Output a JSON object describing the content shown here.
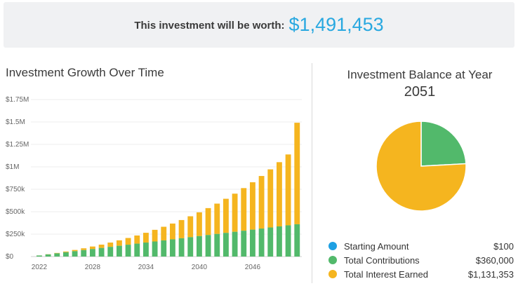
{
  "banner": {
    "label": "This investment will be worth:",
    "value": "$1,491,453"
  },
  "growth_chart_title": "Investment Growth Over Time",
  "balance": {
    "title": "Investment Balance at Year",
    "year": "2051"
  },
  "legend": [
    {
      "label": "Starting Amount",
      "value": "$100",
      "color": "#1ea0e3"
    },
    {
      "label": "Total Contributions",
      "value": "$360,000",
      "color": "#52b96b"
    },
    {
      "label": "Total Interest Earned",
      "value": "$1,131,353",
      "color": "#f5b51f"
    }
  ],
  "colors": {
    "contributions": "#52b96b",
    "interest": "#f5b51f",
    "starting": "#1ea0e3",
    "accent": "#29a8e0"
  },
  "chart_data": [
    {
      "type": "bar",
      "stacked": true,
      "title": "Investment Growth Over Time",
      "x": [
        2022,
        2023,
        2024,
        2025,
        2026,
        2027,
        2028,
        2029,
        2030,
        2031,
        2032,
        2033,
        2034,
        2035,
        2036,
        2037,
        2038,
        2039,
        2040,
        2041,
        2042,
        2043,
        2044,
        2045,
        2046,
        2047,
        2048,
        2049,
        2050,
        2051
      ],
      "x_tick_labels": [
        "2022",
        "2028",
        "2034",
        "2040",
        "2046"
      ],
      "y_tick_labels": [
        "$0",
        "$250k",
        "$500k",
        "$750k",
        "$1M",
        "$1.25M",
        "$1.5M",
        "$1.75M"
      ],
      "ylim": [
        0,
        1750000
      ],
      "series": [
        {
          "name": "Total Contributions",
          "color": "#52b96b",
          "values": [
            12000,
            24000,
            36000,
            48000,
            60000,
            72000,
            84000,
            96000,
            108000,
            120000,
            132000,
            144000,
            156000,
            168000,
            180000,
            192000,
            204000,
            216000,
            228000,
            240000,
            252000,
            264000,
            276000,
            288000,
            300000,
            312000,
            324000,
            336000,
            348000,
            360000
          ]
        },
        {
          "name": "Total Interest Earned",
          "color": "#f5b51f",
          "values": [
            500,
            2000,
            4500,
            8500,
            13500,
            20000,
            28000,
            37000,
            48000,
            61000,
            75000,
            91000,
            109000,
            130000,
            152000,
            176000,
            203000,
            233000,
            265000,
            300000,
            338000,
            380000,
            425000,
            475000,
            528000,
            586000,
            648000,
            716000,
            790000,
            1131353
          ]
        }
      ]
    },
    {
      "type": "pie",
      "title": "Investment Balance at Year",
      "labels": [
        "Starting Amount",
        "Total Contributions",
        "Total Interest Earned"
      ],
      "values": [
        100,
        360000,
        1131353
      ],
      "colors": [
        "#1ea0e3",
        "#52b96b",
        "#f5b51f"
      ]
    }
  ]
}
